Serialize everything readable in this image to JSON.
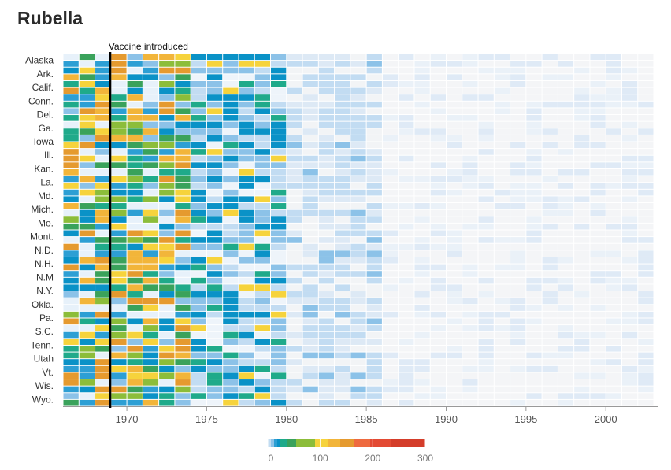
{
  "title": "Rubella",
  "annotation": {
    "label": "Vaccine introduced",
    "year": 1969
  },
  "chart_data": {
    "type": "heatmap",
    "title": "Rubella",
    "x_range": [
      1966,
      2003
    ],
    "x_ticks": [
      1970,
      1975,
      1980,
      1985,
      1990,
      1995,
      2000
    ],
    "row_labels": [
      "Alaska",
      "Ark.",
      "Calif.",
      "Conn.",
      "Del.",
      "Ga.",
      "Iowa",
      "Ill.",
      "Kan.",
      "La.",
      "Md.",
      "Mich.",
      "Mo.",
      "Mont.",
      "N.D.",
      "N.H.",
      "N.M",
      "N.Y.",
      "Okla.",
      "Pa.",
      "S.C.",
      "Tenn.",
      "Utah",
      "Vt.",
      "Wis.",
      "Wyo."
    ],
    "rows_per_label": 2,
    "grid": true,
    "value_range": [
      0,
      300
    ],
    "legend": {
      "ticks": [
        0,
        100,
        200,
        300
      ],
      "colors": [
        "#e7f1fa",
        "#c2dcf2",
        "#8cc2e8",
        "#2d9fd4",
        "#0a92c7",
        "#1faa8a",
        "#3aa25b",
        "#8cbd3a",
        "#f6d33c",
        "#f2b53a",
        "#e59a2f",
        "#ee6a3f",
        "#e34a33",
        "#d43d2a"
      ]
    }
  }
}
